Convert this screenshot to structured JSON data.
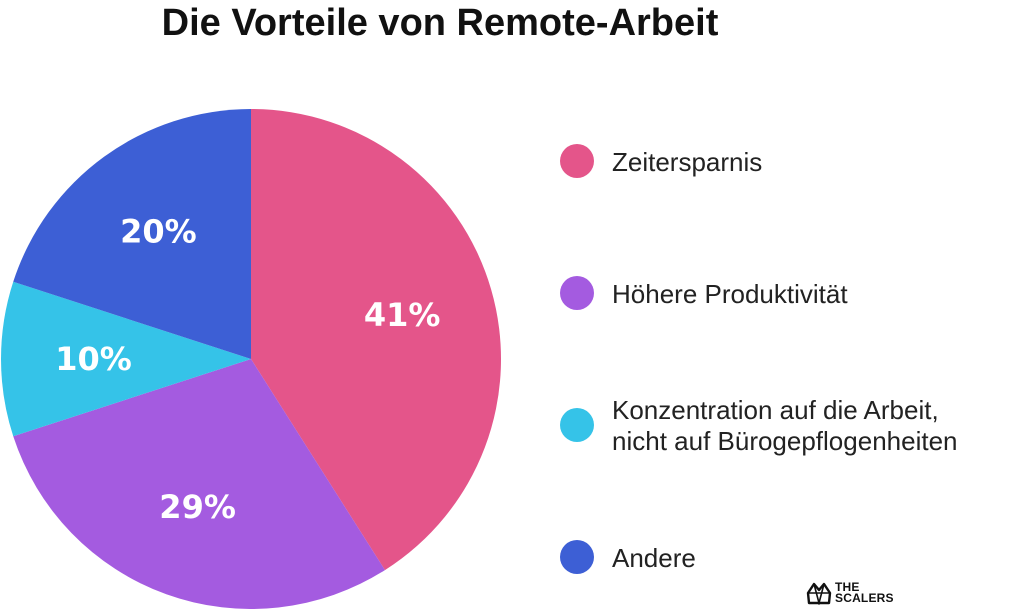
{
  "chart_data": {
    "type": "pie",
    "title": "Die Vorteile von Remote-Arbeit",
    "slices": [
      {
        "label": "Zeitersparnis",
        "value": 41,
        "value_label": "41%",
        "color": "#e4558a"
      },
      {
        "label": "Höhere Produktivität",
        "value": 29,
        "value_label": "29%",
        "color": "#a45be0"
      },
      {
        "label": [
          "Konzentration auf die Arbeit,",
          "nicht auf Bürogepflogenheiten"
        ],
        "value": 10,
        "value_label": "10%",
        "color": "#35c3e8"
      },
      {
        "label": "Andere",
        "value": 20,
        "value_label": "20%",
        "color": "#3d5fd5"
      }
    ],
    "legend_position": "right"
  },
  "branding": {
    "logo_line1": "THE",
    "logo_line2": "SCALERS"
  }
}
